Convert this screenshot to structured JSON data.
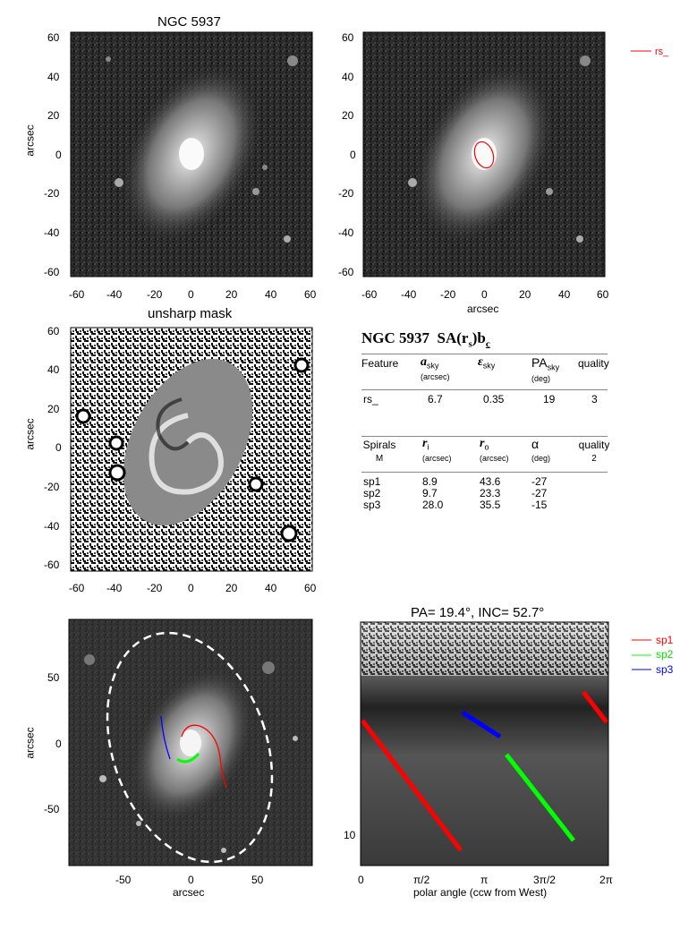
{
  "panel_a": {
    "title": "NGC 5937",
    "ylabel": "arcsec",
    "yticks": [
      "60",
      "40",
      "20",
      "0",
      "-20",
      "-40",
      "-60"
    ],
    "xticks": [
      "-60",
      "-40",
      "-20",
      "0",
      "20",
      "40",
      "60"
    ]
  },
  "panel_b": {
    "xlabel": "arcsec",
    "yticks": [
      "60",
      "40",
      "20",
      "0",
      "-20",
      "-40",
      "-60"
    ],
    "xticks": [
      "-60",
      "-40",
      "-20",
      "0",
      "20",
      "40",
      "60"
    ],
    "legend": [
      {
        "name": "rs_",
        "color": "#ff0000"
      }
    ],
    "ellipse": {
      "center": [
        0,
        0
      ],
      "a_arcsec": 6.7,
      "ell": 0.35,
      "pa_deg": 19
    }
  },
  "panel_c": {
    "title": "unsharp mask",
    "ylabel": "arcsec",
    "yticks": [
      "60",
      "40",
      "20",
      "0",
      "-20",
      "-40",
      "-60"
    ],
    "xticks": [
      "-60",
      "-40",
      "-20",
      "0",
      "20",
      "40",
      "60"
    ]
  },
  "table": {
    "heading_name": "NGC 5937",
    "heading_type": "SA(r",
    "heading_sub": "s",
    "heading_tail": ")b",
    "heading_c": "c",
    "feat_head": {
      "c1": "Feature",
      "c2": "a",
      "c2sub": "sky",
      "c2u": "(arcsec)",
      "c3": "ε",
      "c3sub": "sky",
      "c4": "PA",
      "c4sub": "sky",
      "c4u": "(deg)",
      "c5": "quality"
    },
    "feat_row": {
      "c1": "rs_",
      "c2": "6.7",
      "c3": "0.35",
      "c4": "19",
      "c5": "3"
    },
    "spir_head": {
      "c1": "Spirals",
      "c1b": "M",
      "c2": "r",
      "c2sub": "i",
      "c2u": "(arcsec)",
      "c3": "r",
      "c3sub": "o",
      "c3u": "(arcsec)",
      "c4": "α",
      "c4u": "(deg)",
      "c5": "quality",
      "c5b": "2"
    },
    "spir_rows": [
      {
        "c1": "sp1",
        "c2": "8.9",
        "c3": "43.6",
        "c4": "-27"
      },
      {
        "c1": "sp2",
        "c2": "9.7",
        "c3": "23.3",
        "c4": "-27"
      },
      {
        "c1": "sp3",
        "c2": "28.0",
        "c3": "35.5",
        "c4": "-15"
      }
    ]
  },
  "panel_d": {
    "xlabel": "arcsec",
    "ylabel": "arcsec",
    "yticks": [
      "50",
      "0",
      "-50"
    ],
    "xticks": [
      "-50",
      "0",
      "50"
    ]
  },
  "panel_e": {
    "title": "PA=  19.4°, INC=  52.7°",
    "xlabel": "polar angle (ccw from West)",
    "xticks": [
      "0",
      "π/2",
      "π",
      "3π/2",
      "2π"
    ],
    "ytick": "10",
    "legend": [
      {
        "name": "sp1",
        "color": "#ff0000"
      },
      {
        "name": "sp2",
        "color": "#00ff00"
      },
      {
        "name": "sp3",
        "color": "#0000ff"
      }
    ]
  },
  "chart_data": [
    {
      "type": "table",
      "title": "NGC 5937 SA(rs)bc",
      "columns": [
        "Feature",
        "a_sky (arcsec)",
        "ε_sky",
        "PA_sky (deg)",
        "quality"
      ],
      "rows": [
        [
          "rs_",
          6.7,
          0.35,
          19,
          3
        ]
      ]
    },
    {
      "type": "table",
      "columns": [
        "Spirals",
        "r_i (arcsec)",
        "r_o (arcsec)",
        "α (deg)",
        "quality"
      ],
      "rows": [
        [
          "sp1",
          8.9,
          43.6,
          -27,
          2
        ],
        [
          "sp2",
          9.7,
          23.3,
          -27,
          2
        ],
        [
          "sp3",
          28.0,
          35.5,
          -15,
          2
        ]
      ]
    }
  ]
}
